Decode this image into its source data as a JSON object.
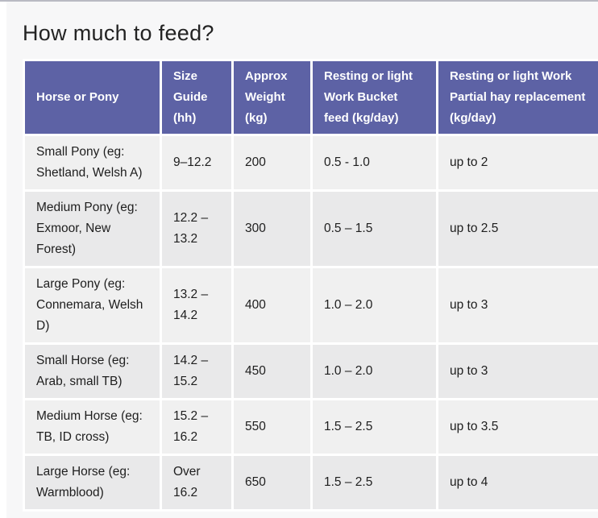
{
  "page": {
    "title": "How much to feed?"
  },
  "colors": {
    "page_bg": "#f7f7f8",
    "outer_bg": "#ffffff",
    "top_line": "#b9bac3",
    "header_bg": "#5d62a5",
    "header_text": "#ffffff",
    "row_odd": "#f0f0f0",
    "row_even": "#e9e9ea",
    "cell_text": "#1e1e1e",
    "separator": "#ffffff",
    "title_text": "#232323"
  },
  "table": {
    "columns": [
      {
        "label": "Horse or Pony"
      },
      {
        "label": "Size Guide (hh)"
      },
      {
        "label": "Approx Weight (kg)"
      },
      {
        "label": "Resting or light Work Bucket feed (kg/day)"
      },
      {
        "label": "Resting or light Work Partial hay replacement (kg/day)"
      }
    ],
    "rows": [
      [
        "Small Pony (eg: Shetland, Welsh A)",
        "9–12.2",
        "200",
        "0.5 - 1.0",
        "up to 2"
      ],
      [
        "Medium Pony (eg: Exmoor, New Forest)",
        "12.2 – 13.2",
        "300",
        "0.5 – 1.5",
        "up to 2.5"
      ],
      [
        "Large Pony (eg: Connemara, Welsh D)",
        "13.2 – 14.2",
        "400",
        "1.0 – 2.0",
        "up to 3"
      ],
      [
        "Small Horse (eg: Arab, small TB)",
        "14.2 – 15.2",
        "450",
        "1.0 – 2.0",
        "up to 3"
      ],
      [
        "Medium Horse (eg: TB, ID cross)",
        "15.2 – 16.2",
        "550",
        "1.5 – 2.5",
        "up to 3.5"
      ],
      [
        "Large Horse (eg: Warmblood)",
        "Over 16.2",
        "650",
        "1.5 – 2.5",
        "up to 4"
      ]
    ]
  }
}
